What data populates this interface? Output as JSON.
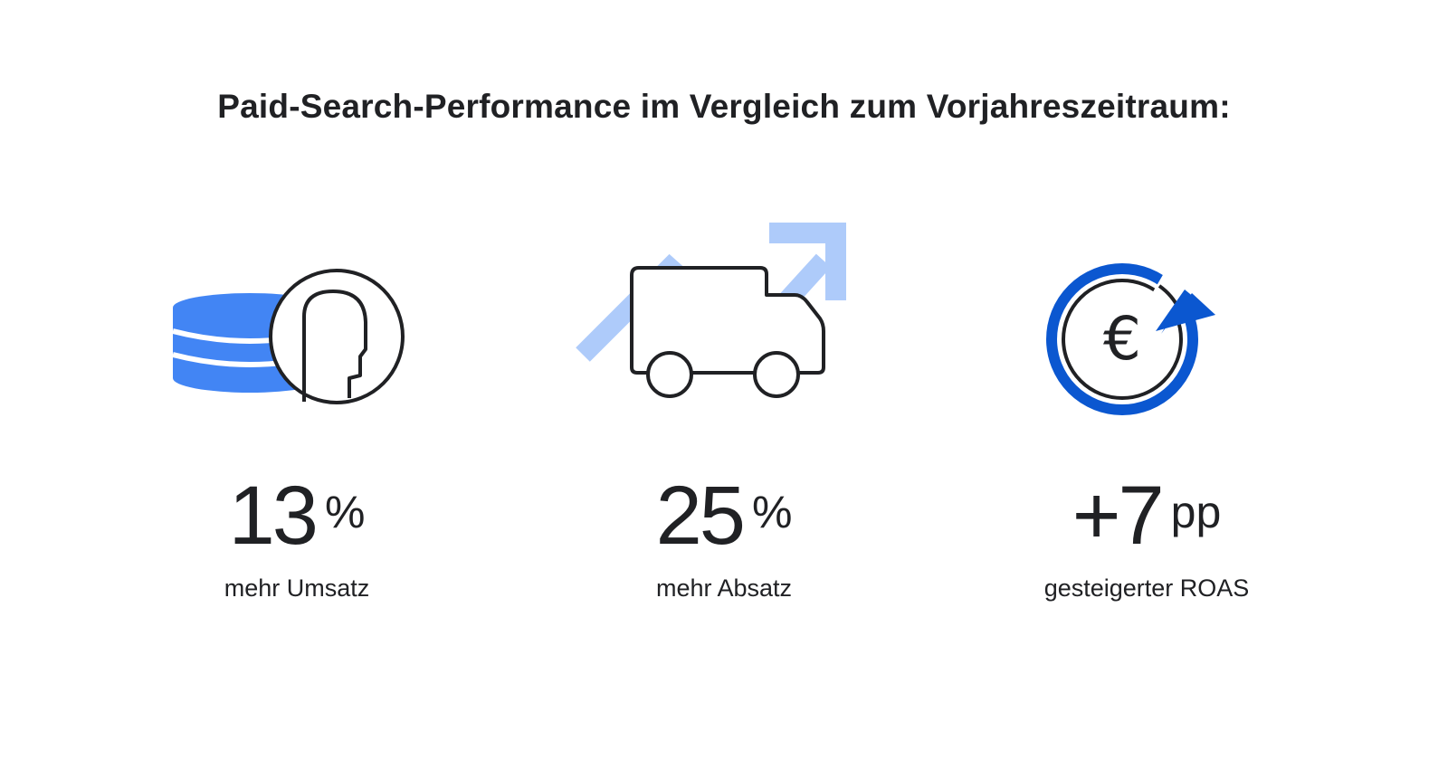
{
  "title": "Paid-Search-Performance im Vergleich zum Vorjahreszeitraum:",
  "colors": {
    "brand_blue": "#4285F4",
    "light_blue": "#AECBFA",
    "dark_blue": "#0B57D0",
    "line": "#202124"
  },
  "stats": [
    {
      "icon": "coins-person-icon",
      "value": "13",
      "unit": "%",
      "caption": "mehr Umsatz"
    },
    {
      "icon": "delivery-truck-growth-icon",
      "value": "25",
      "unit": "%",
      "caption": "mehr Absatz"
    },
    {
      "icon": "euro-circular-arrow-icon",
      "value": "+7",
      "unit": "pp",
      "caption": "gesteigerter ROAS"
    }
  ]
}
